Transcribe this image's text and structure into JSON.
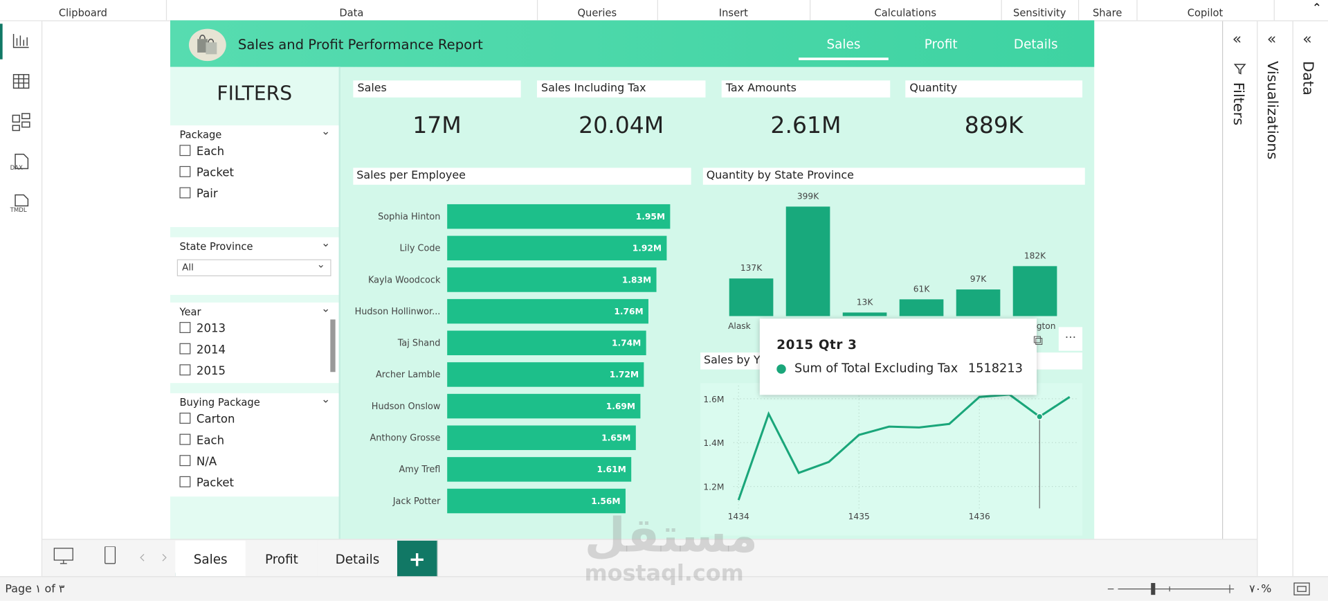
{
  "ribbon": [
    "Clipboard",
    "Data",
    "Queries",
    "Insert",
    "Calculations",
    "Sensitivity",
    "Share",
    "Copilot"
  ],
  "rail_icons": [
    "DAX",
    "TMDL"
  ],
  "report_title": "Sales and Profit Performance Report",
  "nav": [
    "Sales",
    "Profit",
    "Details"
  ],
  "filters": {
    "title": "FILTERS",
    "groups": [
      {
        "name": "Package",
        "options": [
          "Each",
          "Packet",
          "Pair"
        ]
      },
      {
        "name": "State Province",
        "dropdown": "All"
      },
      {
        "name": "Year",
        "options": [
          "2013",
          "2014",
          "2015"
        ]
      },
      {
        "name": "Buying Package",
        "options": [
          "Carton",
          "Each",
          "N/A",
          "Packet"
        ]
      }
    ]
  },
  "kpis": [
    {
      "label": "Sales",
      "value": "17M"
    },
    {
      "label": "Sales Including Tax",
      "value": "20.04M"
    },
    {
      "label": "Tax Amounts",
      "value": "2.61M"
    },
    {
      "label": "Quantity",
      "value": "889K"
    }
  ],
  "sales_per_employee": {
    "type": "bar",
    "title": "Sales per Employee",
    "categories": [
      "Sophia Hinton",
      "Lily Code",
      "Kayla Woodcock",
      "Hudson Hollinwor...",
      "Taj Shand",
      "Archer Lamble",
      "Hudson Onslow",
      "Anthony Grosse",
      "Amy Trefl",
      "Jack Potter"
    ],
    "values": [
      1950000,
      1920000,
      1830000,
      1760000,
      1740000,
      1720000,
      1690000,
      1650000,
      1610000,
      1560000
    ],
    "value_labels": [
      "1.95M",
      "1.92M",
      "1.83M",
      "1.76M",
      "1.74M",
      "1.72M",
      "1.69M",
      "1.65M",
      "1.61M",
      "1.56M"
    ],
    "xlim": [
      0,
      2000000
    ],
    "color": "#1dbf8a"
  },
  "quantity_by_state": {
    "type": "bar",
    "title": "Quantity by State Province",
    "categories": [
      "Alask",
      null,
      null,
      null,
      null,
      "ngton"
    ],
    "values": [
      137000,
      399000,
      13000,
      61000,
      97000,
      182000
    ],
    "value_labels": [
      "137K",
      "399K",
      "13K",
      "61K",
      "97K",
      "182K"
    ],
    "ylim": [
      0,
      420000
    ],
    "color": "#18a97c"
  },
  "sales_by_year": {
    "type": "line",
    "title": "Sales by Y",
    "x": [
      1434,
      1434.25,
      1434.5,
      1434.75,
      1435,
      1435.25,
      1435.5,
      1435.75,
      1436,
      1436.25,
      1436.5,
      1436.75
    ],
    "values": [
      1138000,
      1531000,
      1262000,
      1312000,
      1435000,
      1473000,
      1469000,
      1485000,
      1608000,
      1619000,
      1518213,
      1608000
    ],
    "xlim": [
      1434,
      1436.75
    ],
    "ylim": [
      1100000,
      1660000
    ],
    "xticks": [
      1434,
      1435,
      1436
    ],
    "yticks": [
      {
        "value": 1200000,
        "label": "1.2M"
      },
      {
        "value": 1400000,
        "label": "1.4M"
      },
      {
        "value": 1600000,
        "label": "1.6M"
      }
    ],
    "color": "#1aa67a",
    "grid": true
  },
  "tooltip": {
    "title": "2015 Qtr 3",
    "measure": "Sum of Total Excluding Tax"
  },
  "panes": [
    "Filters",
    "Visualizations",
    "Data"
  ],
  "page_tabs": [
    "Sales",
    "Profit",
    "Details",
    "+"
  ],
  "status": {
    "page": "Page ۱ of ۳",
    "zoom": "۷۰%"
  },
  "watermark": {
    "arabic": "مستقل",
    "latin": "mostaql.com"
  }
}
